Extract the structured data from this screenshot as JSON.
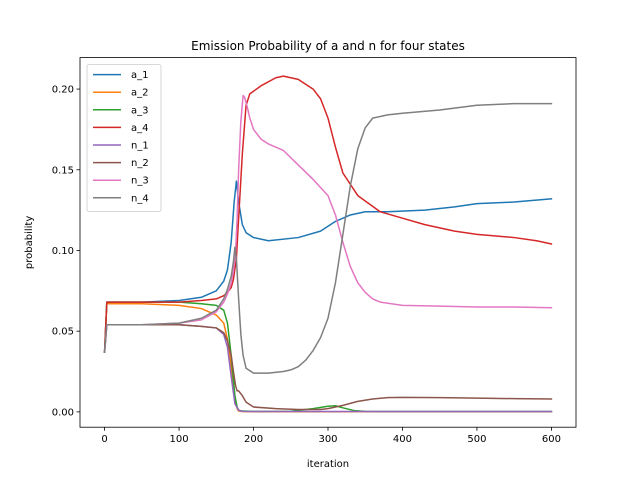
{
  "chart_data": {
    "type": "line",
    "title": "Emission Probability of a and n for four states",
    "xlabel": "iteration",
    "ylabel": "probability",
    "xlim": [
      -33,
      633
    ],
    "ylim": [
      -0.0095,
      0.2195
    ],
    "xticks": [
      0,
      100,
      200,
      300,
      400,
      500,
      600
    ],
    "yticks": [
      0.0,
      0.05,
      0.1,
      0.15,
      0.2
    ],
    "xtick_labels": [
      "0",
      "100",
      "200",
      "300",
      "400",
      "500",
      "600"
    ],
    "ytick_labels": [
      "0.00",
      "0.05",
      "0.10",
      "0.15",
      "0.20"
    ],
    "grid": false,
    "legend_position": "upper-left",
    "series": [
      {
        "name": "a_1",
        "color": "#1f77b4",
        "x": [
          0,
          3,
          50,
          100,
          130,
          150,
          160,
          165,
          170,
          174,
          177,
          180,
          185,
          190,
          200,
          220,
          260,
          290,
          310,
          330,
          350,
          380,
          430,
          470,
          500,
          550,
          600
        ],
        "y": [
          0.037,
          0.068,
          0.068,
          0.069,
          0.071,
          0.075,
          0.081,
          0.088,
          0.105,
          0.13,
          0.143,
          0.13,
          0.116,
          0.111,
          0.108,
          0.106,
          0.108,
          0.112,
          0.118,
          0.122,
          0.124,
          0.124,
          0.125,
          0.127,
          0.129,
          0.13,
          0.132
        ]
      },
      {
        "name": "a_2",
        "color": "#ff7f0e",
        "x": [
          0,
          3,
          50,
          100,
          130,
          150,
          160,
          165,
          170,
          175,
          178,
          180,
          185,
          200,
          300,
          400,
          600
        ],
        "y": [
          0.037,
          0.067,
          0.067,
          0.066,
          0.064,
          0.06,
          0.055,
          0.045,
          0.028,
          0.008,
          0.002,
          0.0005,
          0.0002,
          0.0001,
          0.0001,
          0.0001,
          0.0001
        ]
      },
      {
        "name": "a_3",
        "color": "#2ca02c",
        "x": [
          0,
          3,
          50,
          100,
          130,
          150,
          160,
          165,
          170,
          175,
          178,
          180,
          185,
          200,
          250,
          280,
          300,
          310,
          320,
          335,
          350,
          400,
          600
        ],
        "y": [
          0.037,
          0.068,
          0.068,
          0.068,
          0.067,
          0.066,
          0.063,
          0.055,
          0.035,
          0.01,
          0.003,
          0.001,
          0.0005,
          0.0003,
          0.0004,
          0.002,
          0.0035,
          0.0038,
          0.0025,
          0.0008,
          0.0003,
          0.0002,
          0.0002
        ]
      },
      {
        "name": "a_4",
        "color": "#d62728",
        "x": [
          0,
          3,
          50,
          100,
          130,
          150,
          160,
          165,
          170,
          173,
          177,
          180,
          185,
          190,
          195,
          210,
          230,
          240,
          260,
          280,
          290,
          300,
          310,
          320,
          340,
          370,
          400,
          430,
          470,
          500,
          550,
          580,
          600
        ],
        "y": [
          0.037,
          0.068,
          0.068,
          0.068,
          0.069,
          0.07,
          0.072,
          0.074,
          0.077,
          0.082,
          0.095,
          0.12,
          0.16,
          0.19,
          0.197,
          0.202,
          0.207,
          0.208,
          0.206,
          0.2,
          0.194,
          0.182,
          0.164,
          0.148,
          0.134,
          0.124,
          0.12,
          0.116,
          0.112,
          0.11,
          0.108,
          0.106,
          0.104
        ]
      },
      {
        "name": "n_1",
        "color": "#9467bd",
        "x": [
          0,
          3,
          50,
          100,
          130,
          150,
          160,
          165,
          170,
          175,
          180,
          185,
          200,
          300,
          600
        ],
        "y": [
          0.037,
          0.054,
          0.054,
          0.054,
          0.053,
          0.052,
          0.048,
          0.04,
          0.022,
          0.005,
          0.001,
          0.0003,
          0.0002,
          0.0002,
          0.0002
        ]
      },
      {
        "name": "n_2",
        "color": "#8c564b",
        "x": [
          0,
          3,
          50,
          100,
          130,
          150,
          160,
          165,
          170,
          173,
          176,
          178,
          180,
          185,
          190,
          200,
          230,
          260,
          290,
          300,
          320,
          340,
          360,
          380,
          400,
          450,
          500,
          550,
          600
        ],
        "y": [
          0.037,
          0.054,
          0.054,
          0.054,
          0.053,
          0.052,
          0.049,
          0.044,
          0.035,
          0.025,
          0.016,
          0.013,
          0.013,
          0.01,
          0.006,
          0.003,
          0.002,
          0.0015,
          0.0015,
          0.002,
          0.004,
          0.0065,
          0.008,
          0.0088,
          0.009,
          0.0088,
          0.0085,
          0.0082,
          0.008
        ]
      },
      {
        "name": "n_3",
        "color": "#e377c2",
        "x": [
          0,
          3,
          50,
          100,
          130,
          150,
          160,
          165,
          170,
          173,
          176,
          178,
          180,
          183,
          186,
          188,
          192,
          195,
          200,
          210,
          220,
          240,
          260,
          280,
          300,
          310,
          320,
          330,
          340,
          350,
          360,
          370,
          400,
          450,
          500,
          550,
          600
        ],
        "y": [
          0.037,
          0.054,
          0.054,
          0.055,
          0.057,
          0.062,
          0.068,
          0.073,
          0.08,
          0.087,
          0.1,
          0.12,
          0.15,
          0.18,
          0.196,
          0.195,
          0.188,
          0.182,
          0.175,
          0.169,
          0.166,
          0.162,
          0.153,
          0.144,
          0.134,
          0.122,
          0.105,
          0.09,
          0.08,
          0.074,
          0.07,
          0.068,
          0.066,
          0.0655,
          0.065,
          0.065,
          0.0645
        ]
      },
      {
        "name": "n_4",
        "color": "#7f7f7f",
        "x": [
          0,
          3,
          50,
          100,
          130,
          150,
          160,
          165,
          170,
          173,
          175,
          177,
          180,
          183,
          186,
          190,
          200,
          220,
          240,
          250,
          260,
          270,
          280,
          290,
          300,
          310,
          320,
          330,
          340,
          350,
          360,
          380,
          400,
          450,
          500,
          550,
          600
        ],
        "y": [
          0.037,
          0.054,
          0.054,
          0.055,
          0.058,
          0.063,
          0.07,
          0.076,
          0.084,
          0.093,
          0.102,
          0.095,
          0.07,
          0.048,
          0.035,
          0.027,
          0.024,
          0.024,
          0.025,
          0.026,
          0.028,
          0.032,
          0.038,
          0.046,
          0.058,
          0.08,
          0.11,
          0.14,
          0.163,
          0.176,
          0.182,
          0.184,
          0.185,
          0.187,
          0.19,
          0.191,
          0.191
        ]
      }
    ]
  }
}
